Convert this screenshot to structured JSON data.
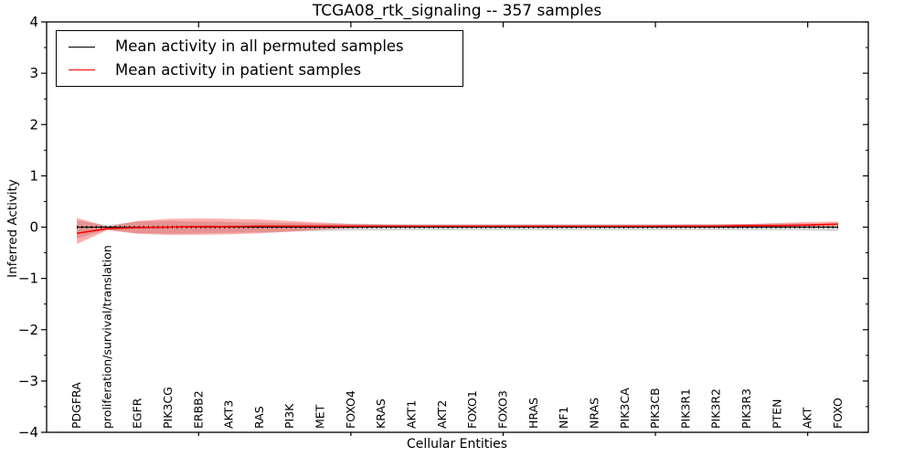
{
  "chart_data": {
    "type": "line",
    "title": "TCGA08_rtk_signaling -- 357 samples",
    "xlabel": "Cellular Entities",
    "ylabel": "Inferred Activity",
    "ylim": [
      -4,
      4
    ],
    "yticks": [
      4,
      3,
      2,
      1,
      0,
      -1,
      -2,
      -3,
      -4
    ],
    "grid": false,
    "legend_position": "upper left",
    "x_major_tick_indices": [
      4,
      9,
      14,
      19,
      24
    ],
    "categories": [
      "PDGFRA",
      "proliferation/survival/translation",
      "EGFR",
      "PIK3CG",
      "ERBB2",
      "AKT3",
      "RAS",
      "PI3K",
      "MET",
      "FOXO4",
      "KRAS",
      "AKT1",
      "AKT2",
      "FOXO1",
      "FOXO3",
      "HRAS",
      "NF1",
      "NRAS",
      "PIK3CA",
      "PIK3CB",
      "PIK3R1",
      "PIK3R2",
      "PIK3R3",
      "PTEN",
      "AKT",
      "FOXO"
    ],
    "series": [
      {
        "name": "Mean activity in all permuted samples",
        "color": "#000000",
        "style": "solid-with-tick-markers",
        "values": [
          0,
          0,
          0,
          0,
          0,
          0,
          0,
          0,
          0,
          0,
          0,
          0,
          0,
          0,
          0,
          0,
          0,
          0,
          0,
          0,
          0,
          0,
          0,
          0,
          0,
          0
        ]
      },
      {
        "name": "Mean activity in patient samples",
        "color": "#ff0000",
        "style": "solid",
        "values": [
          -0.12,
          -0.03,
          -0.01,
          0.0,
          0.01,
          0.01,
          0.02,
          0.02,
          0.02,
          0.02,
          0.02,
          0.02,
          0.02,
          0.02,
          0.02,
          0.02,
          0.02,
          0.02,
          0.02,
          0.02,
          0.02,
          0.02,
          0.03,
          0.03,
          0.04,
          0.06
        ]
      }
    ],
    "bands": [
      {
        "name": "permuted-samples-std-band",
        "color": "#aaaaaa",
        "opacity": 0.45,
        "lo": [
          -0.22,
          -0.05,
          -0.12,
          -0.13,
          -0.12,
          -0.11,
          -0.1,
          -0.09,
          -0.08,
          -0.07,
          -0.07,
          -0.06,
          -0.06,
          -0.06,
          -0.06,
          -0.06,
          -0.06,
          -0.06,
          -0.06,
          -0.06,
          -0.06,
          -0.06,
          -0.06,
          -0.06,
          -0.07,
          -0.08
        ],
        "hi": [
          0.13,
          0.04,
          0.11,
          0.12,
          0.11,
          0.1,
          0.09,
          0.08,
          0.07,
          0.07,
          0.06,
          0.06,
          0.06,
          0.06,
          0.06,
          0.06,
          0.06,
          0.06,
          0.06,
          0.06,
          0.06,
          0.06,
          0.06,
          0.07,
          0.07,
          0.07
        ]
      },
      {
        "name": "patient-samples-std-band",
        "color": "#ff0000",
        "opacity": 0.32,
        "lo": [
          -0.33,
          -0.06,
          -0.13,
          -0.15,
          -0.15,
          -0.14,
          -0.12,
          -0.09,
          -0.05,
          -0.02,
          -0.01,
          0.0,
          0.0,
          0.0,
          0.0,
          0.0,
          0.0,
          0.0,
          0.0,
          0.0,
          0.0,
          0.0,
          0.0,
          0.0,
          0.01,
          0.02
        ],
        "hi": [
          0.18,
          0.01,
          0.12,
          0.16,
          0.17,
          0.16,
          0.15,
          0.12,
          0.09,
          0.06,
          0.05,
          0.04,
          0.04,
          0.04,
          0.04,
          0.04,
          0.04,
          0.04,
          0.04,
          0.04,
          0.05,
          0.05,
          0.06,
          0.08,
          0.1,
          0.11
        ]
      }
    ],
    "axis_color": "#000000"
  }
}
